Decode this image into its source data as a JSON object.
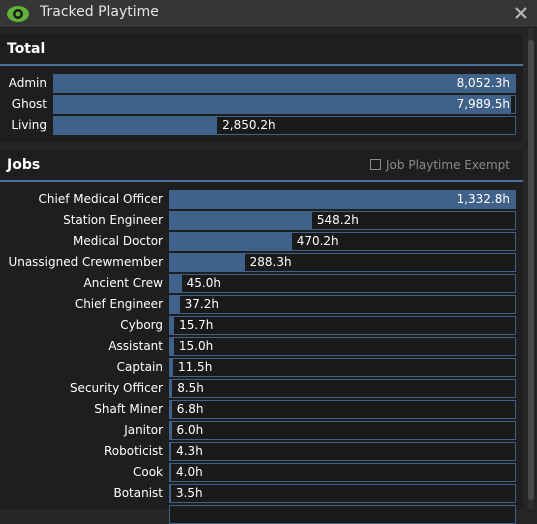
{
  "window": {
    "title": "Tracked Playtime"
  },
  "total": {
    "title": "Total",
    "rows": [
      {
        "label": "Admin",
        "value": 8052.3,
        "value_label": "8,052.3h"
      },
      {
        "label": "Ghost",
        "value": 7989.5,
        "value_label": "7,989.5h"
      },
      {
        "label": "Living",
        "value": 2850.2,
        "value_label": "2,850.2h"
      }
    ]
  },
  "jobs": {
    "title": "Jobs",
    "exempt_label": "Job Playtime Exempt",
    "rows": [
      {
        "label": "Chief Medical Officer",
        "value": 1332.8,
        "value_label": "1,332.8h"
      },
      {
        "label": "Station Engineer",
        "value": 548.2,
        "value_label": "548.2h"
      },
      {
        "label": "Medical Doctor",
        "value": 470.2,
        "value_label": "470.2h"
      },
      {
        "label": "Unassigned Crewmember",
        "value": 288.3,
        "value_label": "288.3h"
      },
      {
        "label": "Ancient Crew",
        "value": 45.0,
        "value_label": "45.0h"
      },
      {
        "label": "Chief Engineer",
        "value": 37.2,
        "value_label": "37.2h"
      },
      {
        "label": "Cyborg",
        "value": 15.7,
        "value_label": "15.7h"
      },
      {
        "label": "Assistant",
        "value": 15.0,
        "value_label": "15.0h"
      },
      {
        "label": "Captain",
        "value": 11.5,
        "value_label": "11.5h"
      },
      {
        "label": "Security Officer",
        "value": 8.5,
        "value_label": "8.5h"
      },
      {
        "label": "Shaft Miner",
        "value": 6.8,
        "value_label": "6.8h"
      },
      {
        "label": "Janitor",
        "value": 6.0,
        "value_label": "6.0h"
      },
      {
        "label": "Roboticist",
        "value": 4.3,
        "value_label": "4.3h"
      },
      {
        "label": "Cook",
        "value": 4.0,
        "value_label": "4.0h"
      },
      {
        "label": "Botanist",
        "value": 3.5,
        "value_label": "3.5h"
      }
    ]
  }
}
